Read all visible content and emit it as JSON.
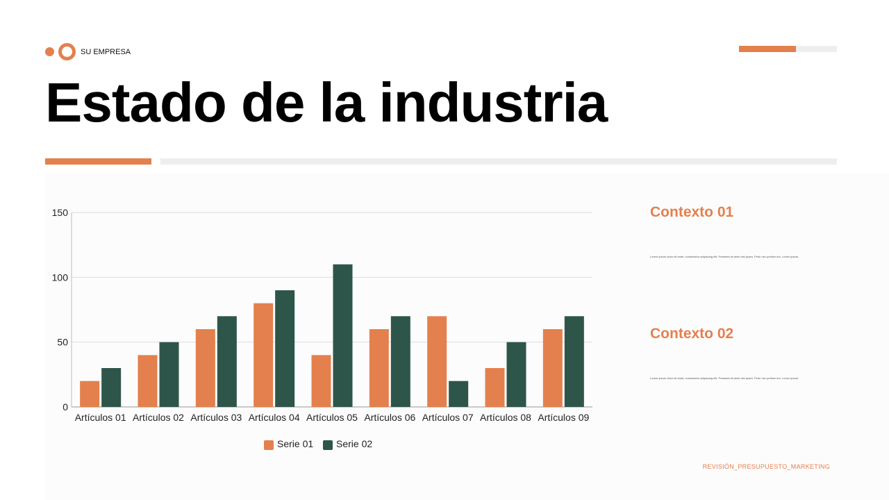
{
  "header": {
    "brand": "SU EMPRESA",
    "title": "Estado de la industria"
  },
  "colors": {
    "accent": "#e4804e",
    "series2": "#2e5549"
  },
  "context": [
    {
      "title": "Contexto 01",
      "body": "Lorem ipsum dolor sit amet, consectetur adipiscing elit. Praesent sit amet nisl quam. Proin nec pretium leo. Lorem ipsum."
    },
    {
      "title": "Contexto 02",
      "body": "Lorem ipsum dolor sit amet, consectetur adipiscing elit. Praesent sit amet nisl quam. Proin nec pretium leo. Lorem ipsum."
    }
  ],
  "footer": "REVISIÓN_PRESUPUESTO_MARKETING",
  "chart_data": {
    "type": "bar",
    "categories": [
      "Artículos 01",
      "Artículos 02",
      "Artículos 03",
      "Artículos 04",
      "Artículos 05",
      "Artículos 06",
      "Artículos 07",
      "Artículos 08",
      "Artículos 09"
    ],
    "series": [
      {
        "name": "Serie 01",
        "color": "#e4804e",
        "values": [
          20,
          40,
          60,
          80,
          40,
          60,
          70,
          30,
          60
        ]
      },
      {
        "name": "Serie 02",
        "color": "#2e5549",
        "values": [
          30,
          50,
          70,
          90,
          110,
          70,
          20,
          50,
          70
        ]
      }
    ],
    "ylim": [
      0,
      150
    ],
    "yticks": [
      0,
      50,
      100,
      150
    ],
    "grid": true,
    "legend": "bottom"
  }
}
